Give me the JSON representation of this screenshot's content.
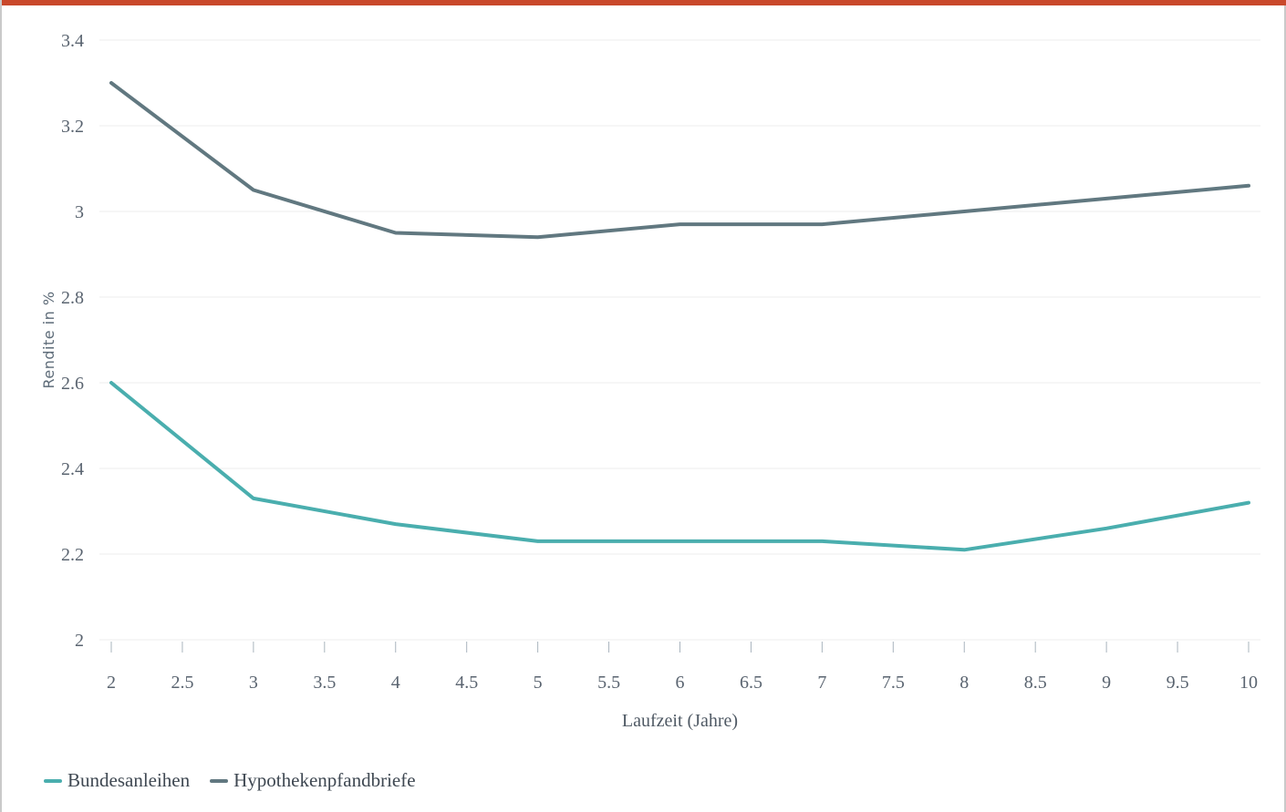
{
  "colors": {
    "top_bar": "#c9482b",
    "grid": "#ececec",
    "tick": "#a9b4be"
  },
  "chart_data": {
    "type": "line",
    "xlabel": "Laufzeit (Jahre)",
    "ylabel": "Rendite in %",
    "xlim": [
      2,
      10
    ],
    "ylim": [
      2,
      3.4
    ],
    "x_ticks": [
      2,
      2.5,
      3,
      3.5,
      4,
      4.5,
      5,
      5.5,
      6,
      6.5,
      7,
      7.5,
      8,
      8.5,
      9,
      9.5,
      10
    ],
    "y_ticks": [
      2,
      2.2,
      2.4,
      2.6,
      2.8,
      3,
      3.2,
      3.4
    ],
    "grid": "horizontal",
    "legend_position": "bottom-left",
    "series": [
      {
        "name": "Bundesanleihen",
        "color": "#4aaeae",
        "x": [
          2,
          3,
          4,
          5,
          6,
          7,
          8,
          9,
          10
        ],
        "y": [
          2.6,
          2.33,
          2.27,
          2.23,
          2.23,
          2.23,
          2.21,
          2.26,
          2.32
        ]
      },
      {
        "name": "Hypothekenpfandbriefe",
        "color": "#617880",
        "x": [
          2,
          3,
          4,
          5,
          6,
          7,
          8,
          9,
          10
        ],
        "y": [
          3.3,
          3.05,
          2.95,
          2.94,
          2.97,
          2.97,
          3.0,
          3.03,
          3.06
        ]
      }
    ]
  }
}
